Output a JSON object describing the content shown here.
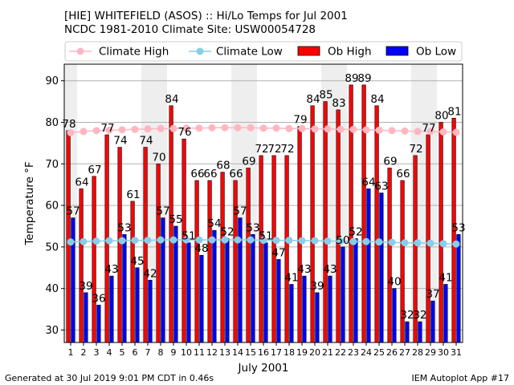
{
  "header": {
    "title_line1": "[HIE] WHITEFIELD (ASOS) :: Hi/Lo Temps for Jul 2001",
    "title_line2": "NCDC 1981-2010 Climate Site: USW00054728"
  },
  "footer": {
    "generated": "Generated at 30 Jul 2019 9:01 PM CDT in 0.46s",
    "app": "IEM Autoplot App #17"
  },
  "chart_data": {
    "type": "bar",
    "xlabel": "July 2001",
    "ylabel": "Temperature °F",
    "ylim": [
      27,
      94
    ],
    "yticks": [
      30,
      40,
      50,
      60,
      70,
      80,
      90
    ],
    "grid": true,
    "legend_position": "top",
    "categories": [
      "1",
      "2",
      "3",
      "4",
      "5",
      "6",
      "7",
      "8",
      "9",
      "10",
      "11",
      "12",
      "13",
      "14",
      "15",
      "16",
      "17",
      "18",
      "19",
      "20",
      "21",
      "22",
      "23",
      "24",
      "25",
      "26",
      "27",
      "28",
      "29",
      "30",
      "31"
    ],
    "series": [
      {
        "name": "Climate High",
        "kind": "line",
        "color": "#ffb6c1",
        "values": [
          77.5,
          77.8,
          78.0,
          78.1,
          78.2,
          78.3,
          78.4,
          78.5,
          78.5,
          78.6,
          78.6,
          78.7,
          78.7,
          78.7,
          78.7,
          78.6,
          78.6,
          78.5,
          78.5,
          78.4,
          78.4,
          78.3,
          78.3,
          78.2,
          78.1,
          78.0,
          77.9,
          77.8,
          77.8,
          77.7,
          77.6
        ]
      },
      {
        "name": "Climate Low",
        "kind": "line",
        "color": "#87ceeb",
        "values": [
          51.2,
          51.3,
          51.4,
          51.5,
          51.5,
          51.6,
          51.6,
          51.7,
          51.7,
          51.7,
          51.7,
          51.7,
          51.7,
          51.7,
          51.7,
          51.6,
          51.6,
          51.6,
          51.5,
          51.5,
          51.4,
          51.4,
          51.3,
          51.3,
          51.2,
          51.1,
          51.0,
          51.0,
          50.9,
          50.8,
          50.7
        ]
      },
      {
        "name": "Ob High",
        "kind": "bar",
        "color": "#ff0000",
        "values": [
          78,
          64,
          67,
          77,
          74,
          61,
          74,
          70,
          84,
          76,
          66,
          66,
          68,
          66,
          69,
          72,
          72,
          72,
          79,
          84,
          85,
          83,
          89,
          89,
          84,
          69,
          66,
          72,
          77,
          80,
          81
        ]
      },
      {
        "name": "Ob Low",
        "kind": "bar",
        "color": "#0000ff",
        "values": [
          57,
          39,
          36,
          43,
          53,
          45,
          42,
          57,
          55,
          51,
          48,
          54,
          52,
          57,
          53,
          51,
          47,
          41,
          43,
          39,
          43,
          50,
          52,
          64,
          63,
          40,
          32,
          32,
          37,
          41,
          53
        ]
      }
    ],
    "shaded_weekend_days": [
      1,
      7,
      8,
      14,
      15,
      21,
      22,
      28,
      29
    ]
  }
}
